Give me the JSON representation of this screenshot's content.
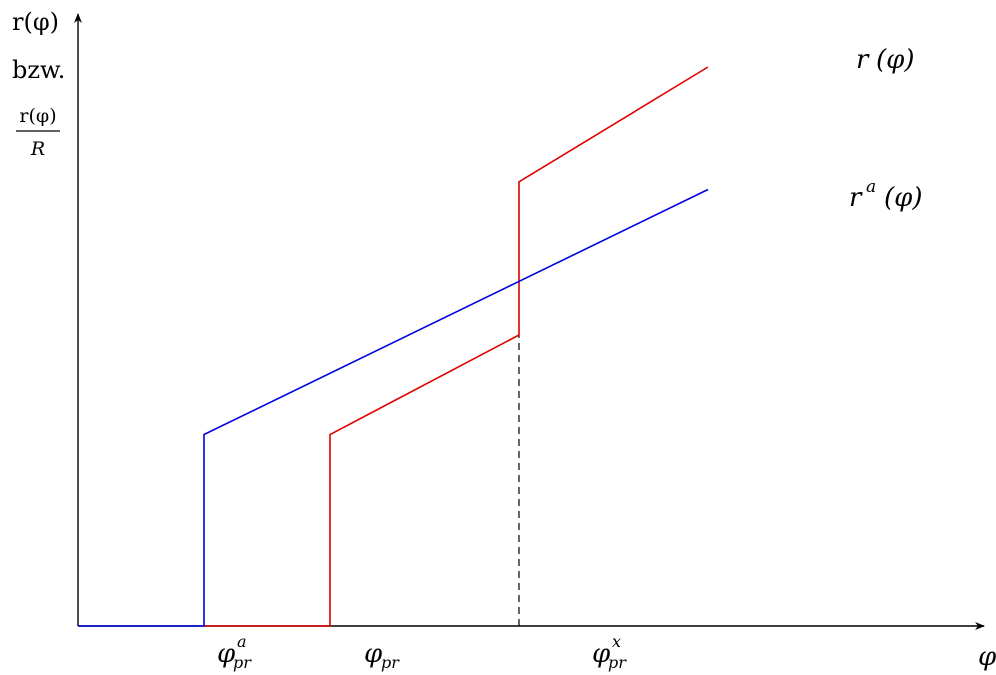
{
  "chart_data": {
    "type": "line",
    "title": "",
    "axes": {
      "y_label": {
        "line1": "r(φ)",
        "line2": "bzw.",
        "fraction_numerator": "r(φ)",
        "fraction_denominator": "R"
      },
      "x_label": "φ",
      "x_ticks": [
        "φ",
        "φ",
        "φ"
      ],
      "x_tick_subscripts": [
        "pr",
        "pr",
        "pr"
      ],
      "x_tick_superscripts": [
        "a",
        "",
        "x"
      ]
    },
    "xlim": [
      0,
      12
    ],
    "ylim": [
      0,
      7
    ],
    "colors": {
      "r": "#e00000",
      "ra": "#0000e0",
      "axis": "#000000"
    },
    "series": [
      {
        "name": "r(φ)",
        "label_main": "r",
        "label_sup": "",
        "label_arg": "(φ)",
        "color": "#e00000",
        "points": [
          [
            2,
            0
          ],
          [
            4,
            0
          ],
          [
            4,
            2.5
          ],
          [
            7,
            3.8
          ],
          [
            7,
            5.8
          ],
          [
            10,
            7.3
          ]
        ]
      },
      {
        "name": "r^a(φ)",
        "label_main": "r",
        "label_sup": "a",
        "label_arg": "(φ)",
        "color": "#0000e0",
        "points": [
          [
            0,
            0
          ],
          [
            2,
            0
          ],
          [
            2,
            2.5
          ],
          [
            10,
            5.7
          ]
        ]
      }
    ],
    "tick_positions": [
      2,
      4,
      7
    ],
    "dashed_guides": [
      {
        "x": 7,
        "y_from": 0,
        "y_to": 3.8
      }
    ]
  }
}
